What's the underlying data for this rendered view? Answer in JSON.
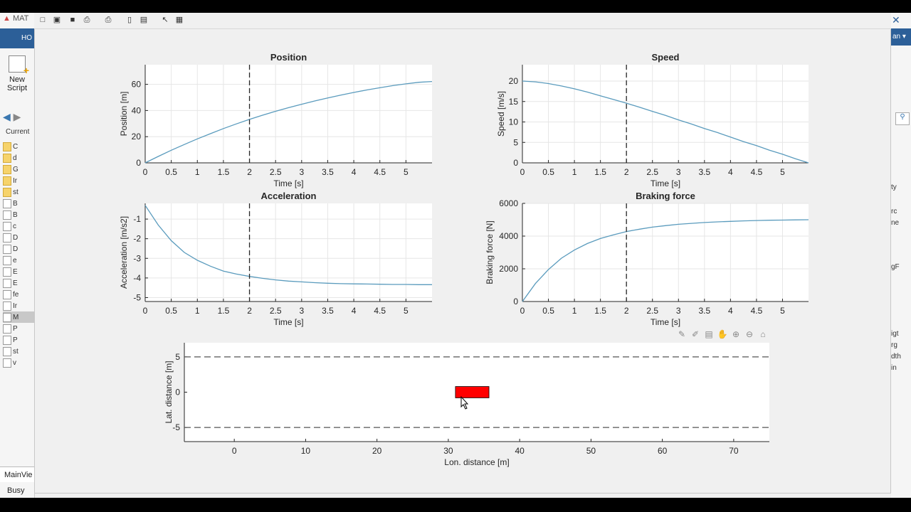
{
  "app": {
    "title_fragment": "MAT",
    "home_tab_fragment": "HO",
    "new_script_label": "New Script",
    "current_folder_fragment": "Current",
    "left_fragments": [
      "C",
      "d",
      "G",
      "Ir",
      "st",
      "B",
      "B",
      "c",
      "D",
      "D",
      "e",
      "E",
      "E",
      "fe",
      "Ir",
      "M",
      "P",
      "P",
      "st",
      "v"
    ],
    "main_view_label": "MainVie",
    "status_text": "Busy",
    "right_fragments": [
      "an ▾",
      "ty",
      "rc",
      "ne",
      "gF",
      "igt",
      "rg",
      "dth",
      "in"
    ],
    "colors": {
      "plot_line": "#5a9bbd",
      "car": "#ff0000",
      "matlab_blue": "#2c5f98"
    }
  },
  "toolbar_icons": [
    "new-figure-icon",
    "open-icon",
    "save-icon",
    "print-icon",
    "print-preview-icon",
    "link-icon",
    "insert-legend-icon",
    "pointer-icon",
    "property-editor-icon"
  ],
  "axes_toolbar_icons": [
    "export-icon",
    "brush-icon",
    "data-tips-icon",
    "pan-icon",
    "zoom-in-icon",
    "zoom-out-icon",
    "home-icon"
  ],
  "chart_data": [
    {
      "id": "position",
      "type": "line",
      "title": "Position",
      "xlabel": "Time [s]",
      "ylabel": "Position [m]",
      "xlim": [
        0,
        5.5
      ],
      "ylim": [
        0,
        75
      ],
      "xticks": [
        "0",
        "0.5",
        "1",
        "1.5",
        "2",
        "2.5",
        "3",
        "3.5",
        "4",
        "4.5",
        "5"
      ],
      "yticks": [
        "0",
        "20",
        "40",
        "60"
      ],
      "marker_x": 2,
      "grid": true,
      "x": [
        0,
        0.25,
        0.5,
        0.75,
        1,
        1.25,
        1.5,
        1.75,
        2,
        2.25,
        2.5,
        2.75,
        3,
        3.25,
        3.5,
        3.75,
        4,
        4.25,
        4.5,
        4.75,
        5,
        5.25,
        5.5
      ],
      "y": [
        0,
        4.9,
        9.6,
        14.0,
        18.3,
        22.3,
        26.2,
        29.8,
        33.2,
        36.4,
        39.4,
        42.2,
        44.8,
        47.3,
        49.6,
        51.8,
        53.8,
        55.7,
        57.4,
        59.0,
        60.4,
        61.6,
        62.2
      ]
    },
    {
      "id": "speed",
      "type": "line",
      "title": "Speed",
      "xlabel": "Time [s]",
      "ylabel": "Speed [m/s]",
      "xlim": [
        0,
        5.5
      ],
      "ylim": [
        0,
        24
      ],
      "xticks": [
        "0",
        "0.5",
        "1",
        "1.5",
        "2",
        "2.5",
        "3",
        "3.5",
        "4",
        "4.5",
        "5"
      ],
      "yticks": [
        "0",
        "5",
        "10",
        "15",
        "20"
      ],
      "marker_x": 2,
      "grid": true,
      "x": [
        0,
        0.25,
        0.5,
        0.75,
        1,
        1.25,
        1.5,
        1.75,
        2,
        2.25,
        2.5,
        2.75,
        3,
        3.25,
        3.5,
        3.75,
        4,
        4.25,
        4.5,
        4.75,
        5,
        5.25,
        5.5
      ],
      "y": [
        20,
        19.8,
        19.4,
        18.8,
        18.1,
        17.3,
        16.4,
        15.5,
        14.6,
        13.6,
        12.6,
        11.6,
        10.5,
        9.5,
        8.4,
        7.4,
        6.3,
        5.2,
        4.2,
        3.1,
        2.1,
        1.0,
        0
      ]
    },
    {
      "id": "acceleration",
      "type": "line",
      "title": "Acceleration",
      "xlabel": "Time [s]",
      "ylabel": "Acceleration [m/s2]",
      "xlim": [
        0,
        5.5
      ],
      "ylim": [
        -5.2,
        -0.2
      ],
      "xticks": [
        "0",
        "0.5",
        "1",
        "1.5",
        "2",
        "2.5",
        "3",
        "3.5",
        "4",
        "4.5",
        "5"
      ],
      "yticks": [
        "-1",
        "-2",
        "-3",
        "-4",
        "-5"
      ],
      "marker_x": 2,
      "grid": true,
      "x": [
        0,
        0.25,
        0.5,
        0.75,
        1,
        1.25,
        1.5,
        1.75,
        2,
        2.25,
        2.5,
        2.75,
        3,
        3.25,
        3.5,
        3.75,
        4,
        4.25,
        4.5,
        4.75,
        5,
        5.25,
        5.5
      ],
      "y": [
        -0.3,
        -1.3,
        -2.1,
        -2.7,
        -3.1,
        -3.4,
        -3.65,
        -3.8,
        -3.92,
        -4.02,
        -4.1,
        -4.16,
        -4.2,
        -4.24,
        -4.27,
        -4.29,
        -4.3,
        -4.31,
        -4.32,
        -4.33,
        -4.33,
        -4.34,
        -4.34
      ]
    },
    {
      "id": "braking-force",
      "type": "line",
      "title": "Braking force",
      "xlabel": "Time [s]",
      "ylabel": "Braking force [N]",
      "xlim": [
        0,
        5.5
      ],
      "ylim": [
        0,
        6000
      ],
      "xticks": [
        "0",
        "0.5",
        "1",
        "1.5",
        "2",
        "2.5",
        "3",
        "3.5",
        "4",
        "4.5",
        "5"
      ],
      "yticks": [
        "0",
        "2000",
        "4000",
        "6000"
      ],
      "marker_x": 2,
      "grid": true,
      "x": [
        0,
        0.25,
        0.5,
        0.75,
        1,
        1.25,
        1.5,
        1.75,
        2,
        2.25,
        2.5,
        2.75,
        3,
        3.25,
        3.5,
        3.75,
        4,
        4.25,
        4.5,
        4.75,
        5,
        5.25,
        5.5
      ],
      "y": [
        0,
        1100,
        1950,
        2650,
        3150,
        3550,
        3850,
        4080,
        4280,
        4420,
        4550,
        4640,
        4720,
        4780,
        4830,
        4870,
        4900,
        4930,
        4950,
        4970,
        4980,
        4990,
        5000
      ]
    },
    {
      "id": "scene",
      "type": "scatter",
      "title": "",
      "xlabel": "Lon. distance [m]",
      "ylabel": "Lat. distance [m]",
      "xlim": [
        -7,
        75
      ],
      "ylim": [
        -7,
        7
      ],
      "xticks": [
        "0",
        "10",
        "20",
        "30",
        "40",
        "50",
        "60",
        "70"
      ],
      "yticks": [
        "5",
        "0",
        "-5"
      ],
      "lane_lines_y": [
        5,
        -5
      ],
      "vehicle": {
        "x_min": 31,
        "x_max": 35.7,
        "y_min": -0.8,
        "y_max": 0.8
      },
      "grid": false
    }
  ]
}
